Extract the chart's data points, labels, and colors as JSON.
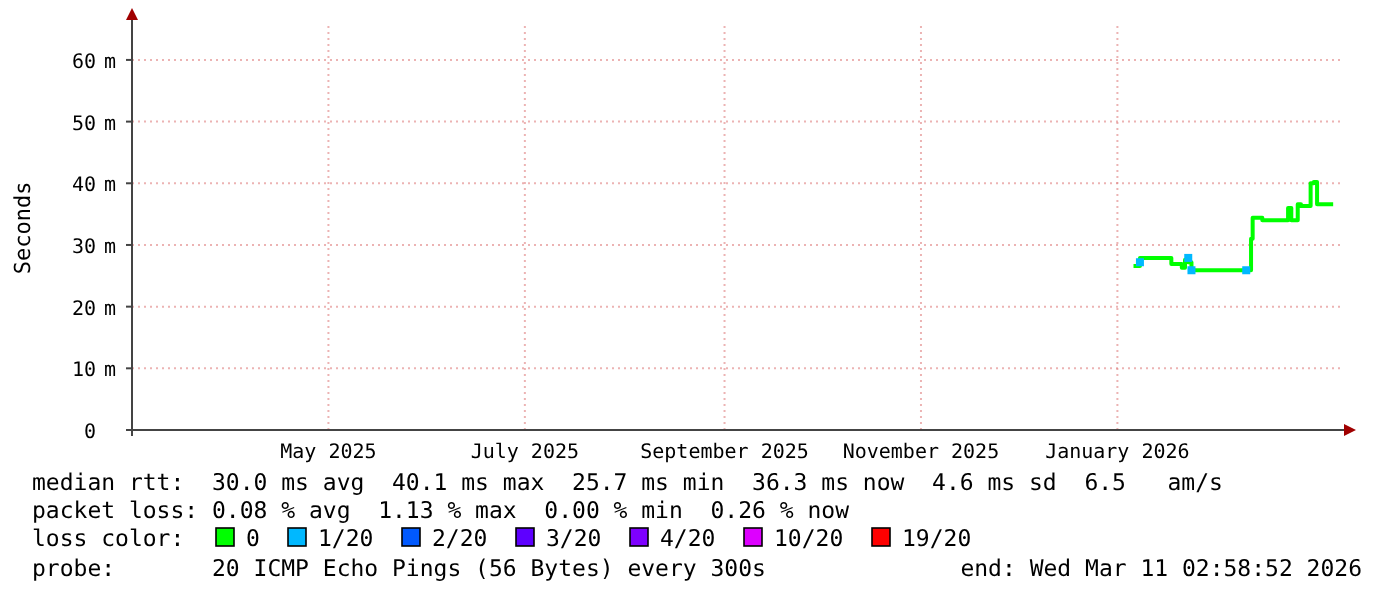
{
  "chart_data": {
    "type": "line",
    "ylabel": "Seconds",
    "legend_title": "loss color:",
    "legend": "bottom",
    "grid": true,
    "line_style": "solid",
    "marker": "none",
    "xlim": [
      "2025-03-01",
      "2026-03-11T02:58"
    ],
    "xticks": [
      {
        "value": "2025-05-01",
        "label": "May 2025"
      },
      {
        "value": "2025-07-01",
        "label": "July 2025"
      },
      {
        "value": "2025-09-01",
        "label": "September 2025"
      },
      {
        "value": "2025-11-01",
        "label": "November 2025"
      },
      {
        "value": "2026-01-01",
        "label": "January 2026"
      }
    ],
    "ylim": [
      0,
      65.5
    ],
    "yticks": [
      0,
      {
        "value": 10,
        "label": "10 m"
      },
      {
        "value": 20,
        "label": "20 m"
      },
      {
        "value": 30,
        "label": "30 m"
      },
      {
        "value": 40,
        "label": "40 m"
      },
      {
        "value": 50,
        "label": "50 m"
      },
      {
        "value": 60,
        "label": "60 m"
      }
    ],
    "series": [
      {
        "name": "0",
        "color": "#00ff00",
        "x": [
          "2026-01-06",
          "2026-01-08",
          "2026-01-17",
          "2026-01-17T18:00",
          "2026-01-21",
          "2026-01-22",
          "2026-01-23",
          "2026-01-24",
          "2026-02-11",
          "2026-02-11T12:00",
          "2026-02-12",
          "2026-02-15",
          "2026-02-22",
          "2026-02-23",
          "2026-02-24",
          "2026-02-26",
          "2026-02-27",
          "2026-03-02",
          "2026-03-03",
          "2026-03-04",
          "2026-03-09"
        ],
        "values": [
          26.6,
          27.9,
          27.9,
          26.9,
          26.3,
          27.6,
          27.2,
          25.9,
          25.9,
          31,
          34.4,
          34,
          34,
          36,
          34,
          36.6,
          36.3,
          40,
          40.2,
          36.6,
          36.6
        ]
      },
      {
        "name": "1/20",
        "color": "#00b8ff",
        "type": "scatter",
        "marker": "square",
        "x": [
          "2026-01-08",
          "2026-01-23",
          "2026-01-24",
          "2026-02-10"
        ],
        "values": [
          27.2,
          27.9,
          25.9,
          25.9
        ]
      },
      {
        "name": "2/20",
        "color": "#0059ff"
      },
      {
        "name": "3/20",
        "color": "#5e00ff"
      },
      {
        "name": "4/20",
        "color": "#7e00ff"
      },
      {
        "name": "10/20",
        "color": "#dd00ff"
      },
      {
        "name": "19/20",
        "color": "#ff0000"
      }
    ],
    "annotations": [
      "median rtt:  30.0 ms avg  40.1 ms max  25.7 ms min  36.3 ms now  4.6 ms sd  6.5   am/s",
      "packet loss: 0.08 % avg  1.13 % max  0.00 % min  0.26 % now",
      "probe:       20 ICMP Echo Pings (56 Bytes) every 300s",
      "end: Wed Mar 11 02:58:52 2026"
    ]
  }
}
